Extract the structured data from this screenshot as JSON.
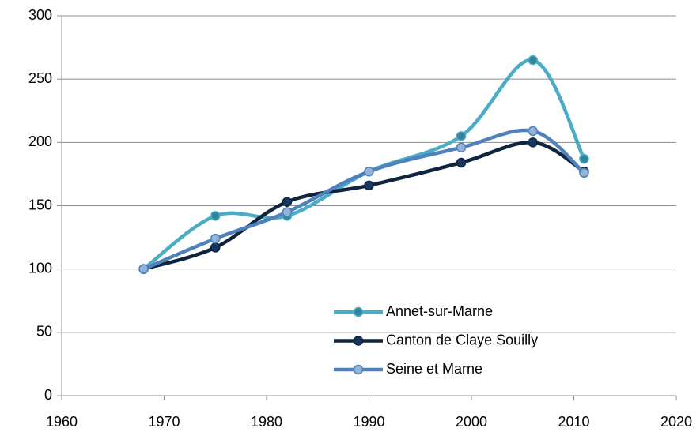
{
  "chart_data": {
    "type": "line",
    "x": [
      1968,
      1975,
      1982,
      1990,
      1999,
      2006,
      2011
    ],
    "series": [
      {
        "name": "Annet-sur-Marne",
        "color": "#4bacc6",
        "marker_color": "#31859c",
        "values": [
          100,
          142,
          142,
          177,
          205,
          265,
          187
        ]
      },
      {
        "name": "Canton de Claye Souilly",
        "color": "#0f243e",
        "marker_color": "#17375e",
        "values": [
          100,
          117,
          153,
          166,
          184,
          200,
          177
        ]
      },
      {
        "name": "Seine et Marne",
        "color": "#4f81bd",
        "marker_color": "#95b3d7",
        "values": [
          100,
          124,
          145,
          177,
          196,
          209,
          176
        ]
      }
    ],
    "xlim": [
      1960,
      2020
    ],
    "xticks": [
      1960,
      1970,
      1980,
      1990,
      2000,
      2010,
      2020
    ],
    "ylim": [
      0,
      300
    ],
    "yticks": [
      0,
      50,
      100,
      150,
      200,
      250,
      300
    ],
    "grid": true,
    "smooth": true,
    "legend": "lower center"
  }
}
